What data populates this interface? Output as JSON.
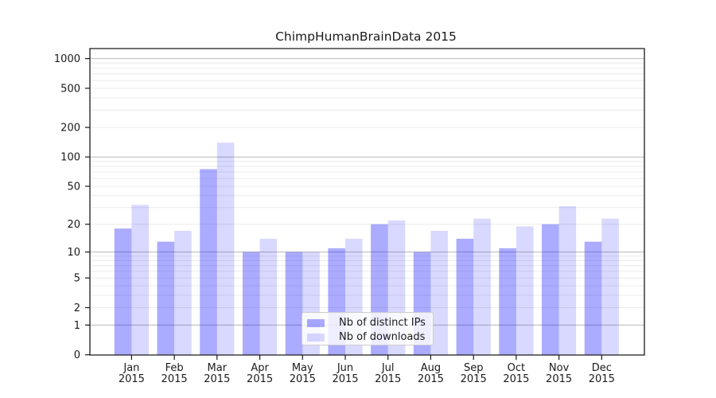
{
  "chart_data": {
    "type": "bar",
    "title": "ChimpHumanBrainData 2015",
    "months": [
      "Jan",
      "Feb",
      "Mar",
      "Apr",
      "May",
      "Jun",
      "Jul",
      "Aug",
      "Sep",
      "Oct",
      "Nov",
      "Dec"
    ],
    "year": "2015",
    "categories": [
      "Jan 2015",
      "Feb 2015",
      "Mar 2015",
      "Apr 2015",
      "May 2015",
      "Jun 2015",
      "Jul 2015",
      "Aug 2015",
      "Sep 2015",
      "Oct 2015",
      "Nov 2015",
      "Dec 2015"
    ],
    "series": [
      {
        "name": "Nb of distinct IPs",
        "color_hex": "#aaaaff",
        "fill": "rgba(0,0,255,0.33)",
        "values": [
          18,
          13,
          75,
          10,
          10,
          11,
          20,
          10,
          14,
          11,
          20,
          13
        ]
      },
      {
        "name": "Nb of downloads",
        "color_hex": "#d9d9ff",
        "fill": "rgba(0,0,255,0.15)",
        "values": [
          32,
          17,
          140,
          14,
          10,
          14,
          22,
          17,
          23,
          19,
          31,
          23
        ]
      }
    ],
    "yscale": "log1p",
    "yticks": [
      0,
      1,
      2,
      5,
      10,
      20,
      50,
      100,
      200,
      500,
      1000
    ],
    "ylim": [
      0,
      1260
    ],
    "xlabel": "",
    "ylabel": "",
    "grid": true,
    "legend_position": "lower center",
    "grid_major_color": "#b8b8b8",
    "grid_minor_color": "#ececec",
    "axis_color": "#1a1a1a"
  }
}
